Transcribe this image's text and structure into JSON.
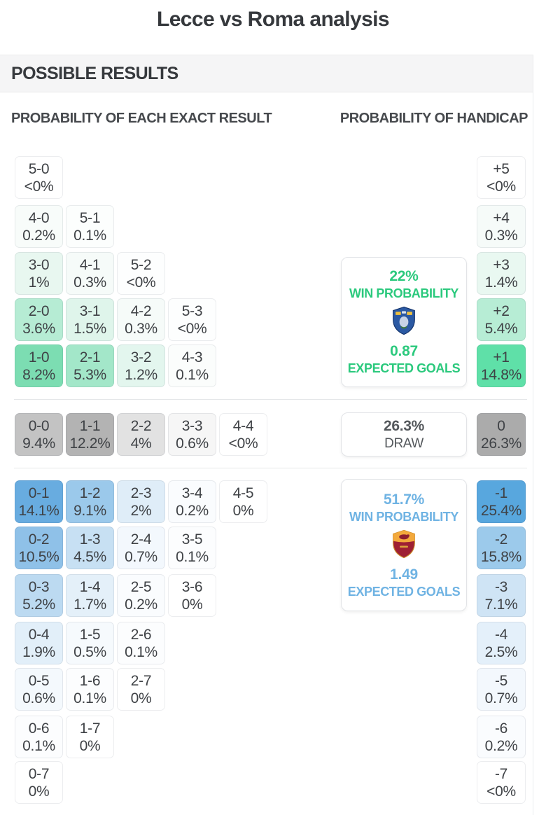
{
  "title": "Lecce vs Roma analysis",
  "sections": {
    "header": "POSSIBLE RESULTS",
    "exact_result_header": "PROBABILITY OF EACH EXACT RESULT",
    "handicap_header": "PROBABILITY OF HANDICAP"
  },
  "home_panel": {
    "team": "Lecce",
    "win_pct": "22%",
    "win_label": "WIN PROBABILITY",
    "expected_goals": "0.87",
    "goals_label": "EXPECTED GOALS",
    "accent": "#2BC97D"
  },
  "draw_panel": {
    "pct": "26.3%",
    "label": "DRAW",
    "accent": "#54585C"
  },
  "away_panel": {
    "team": "Roma",
    "win_pct": "51.7%",
    "win_label": "WIN PROBABILITY",
    "expected_goals": "1.49",
    "goals_label": "EXPECTED GOALS",
    "accent": "#6FB3E3"
  },
  "colors": {
    "home_max": "#7CDDB2",
    "away_max": "#58A7DE",
    "draw_max": "#ABABAB",
    "handicap_home_max": "#5FE0A8"
  },
  "chart_data": {
    "type": "heatmap",
    "title": "Lecce vs Roma analysis",
    "exact_result_cells": {
      "home_win_rows": [
        [
          {
            "score": "5-0",
            "pct": "<0%",
            "bg": "#FFFFFF"
          }
        ],
        [
          {
            "score": "4-0",
            "pct": "0.2%",
            "bg": "#F8FCFA"
          },
          {
            "score": "5-1",
            "pct": "0.1%",
            "bg": "#FCFEFD"
          }
        ],
        [
          {
            "score": "3-0",
            "pct": "1%",
            "bg": "#E8F7F0"
          },
          {
            "score": "4-1",
            "pct": "0.3%",
            "bg": "#F6FBF9"
          },
          {
            "score": "5-2",
            "pct": "<0%",
            "bg": "#FDFEFE"
          }
        ],
        [
          {
            "score": "2-0",
            "pct": "3.6%",
            "bg": "#B6ECD4"
          },
          {
            "score": "3-1",
            "pct": "1.5%",
            "bg": "#DFF5EB"
          },
          {
            "score": "4-2",
            "pct": "0.3%",
            "bg": "#F6FBF9"
          },
          {
            "score": "5-3",
            "pct": "<0%",
            "bg": "#FDFEFE"
          }
        ],
        [
          {
            "score": "1-0",
            "pct": "8.2%",
            "bg": "#7CDDB2"
          },
          {
            "score": "2-1",
            "pct": "5.3%",
            "bg": "#A3E7C9"
          },
          {
            "score": "3-2",
            "pct": "1.2%",
            "bg": "#E3F6EE"
          },
          {
            "score": "4-3",
            "pct": "0.1%",
            "bg": "#FBFDFC"
          }
        ]
      ],
      "draw_row": [
        {
          "score": "0-0",
          "pct": "9.4%",
          "bg": "#C3C3C3"
        },
        {
          "score": "1-1",
          "pct": "12.2%",
          "bg": "#B3B3B3"
        },
        {
          "score": "2-2",
          "pct": "4%",
          "bg": "#E2E2E2"
        },
        {
          "score": "3-3",
          "pct": "0.6%",
          "bg": "#F6F6F6"
        },
        {
          "score": "4-4",
          "pct": "<0%",
          "bg": "#FFFFFF"
        }
      ],
      "away_win_rows": [
        [
          {
            "score": "0-1",
            "pct": "14.1%",
            "bg": "#68ACE0"
          },
          {
            "score": "1-2",
            "pct": "9.1%",
            "bg": "#9BC9EB"
          },
          {
            "score": "2-3",
            "pct": "2%",
            "bg": "#DFEDF8"
          },
          {
            "score": "3-4",
            "pct": "0.2%",
            "bg": "#FAFCFE"
          },
          {
            "score": "4-5",
            "pct": "0%",
            "bg": "#FFFFFF"
          }
        ],
        [
          {
            "score": "0-2",
            "pct": "10.5%",
            "bg": "#8FC1E8"
          },
          {
            "score": "1-3",
            "pct": "4.5%",
            "bg": "#C7E0F3"
          },
          {
            "score": "2-4",
            "pct": "0.7%",
            "bg": "#F3F8FD"
          },
          {
            "score": "3-5",
            "pct": "0.1%",
            "bg": "#FCFDFE"
          }
        ],
        [
          {
            "score": "0-3",
            "pct": "5.2%",
            "bg": "#BCDAF1"
          },
          {
            "score": "1-4",
            "pct": "1.7%",
            "bg": "#E4F0F9"
          },
          {
            "score": "2-5",
            "pct": "0.2%",
            "bg": "#FAFCFE"
          },
          {
            "score": "3-6",
            "pct": "0%",
            "bg": "#FFFFFF"
          }
        ],
        [
          {
            "score": "0-4",
            "pct": "1.9%",
            "bg": "#E2EFF9"
          },
          {
            "score": "1-5",
            "pct": "0.5%",
            "bg": "#F6FAFD"
          },
          {
            "score": "2-6",
            "pct": "0.1%",
            "bg": "#FCFDFE"
          }
        ],
        [
          {
            "score": "0-5",
            "pct": "0.6%",
            "bg": "#F4F9FD"
          },
          {
            "score": "1-6",
            "pct": "0.1%",
            "bg": "#FCFDFE"
          },
          {
            "score": "2-7",
            "pct": "0%",
            "bg": "#FFFFFF"
          }
        ],
        [
          {
            "score": "0-6",
            "pct": "0.1%",
            "bg": "#FCFDFE"
          },
          {
            "score": "1-7",
            "pct": "0%",
            "bg": "#FFFFFF"
          }
        ],
        [
          {
            "score": "0-7",
            "pct": "0%",
            "bg": "#FFFFFF"
          }
        ]
      ]
    },
    "handicap_cells": {
      "home": [
        {
          "line": "+5",
          "pct": "<0%",
          "bg": "#FFFFFF"
        },
        {
          "line": "+4",
          "pct": "0.3%",
          "bg": "#F6FBF9"
        },
        {
          "line": "+3",
          "pct": "1.4%",
          "bg": "#E9F8F1"
        },
        {
          "line": "+2",
          "pct": "5.4%",
          "bg": "#B7EDD5"
        },
        {
          "line": "+1",
          "pct": "14.8%",
          "bg": "#5FE0A8"
        }
      ],
      "draw": {
        "line": "0",
        "pct": "26.3%",
        "bg": "#ABABAB"
      },
      "away": [
        {
          "line": "-1",
          "pct": "25.4%",
          "bg": "#58A7DE"
        },
        {
          "line": "-2",
          "pct": "15.8%",
          "bg": "#9CCAEB"
        },
        {
          "line": "-3",
          "pct": "7.1%",
          "bg": "#CFE4F5"
        },
        {
          "line": "-4",
          "pct": "2.5%",
          "bg": "#E4F0FA"
        },
        {
          "line": "-5",
          "pct": "0.7%",
          "bg": "#F3F8FD"
        },
        {
          "line": "-6",
          "pct": "0.2%",
          "bg": "#FAFCFE"
        },
        {
          "line": "-7",
          "pct": "<0%",
          "bg": "#FFFFFF"
        }
      ]
    }
  }
}
